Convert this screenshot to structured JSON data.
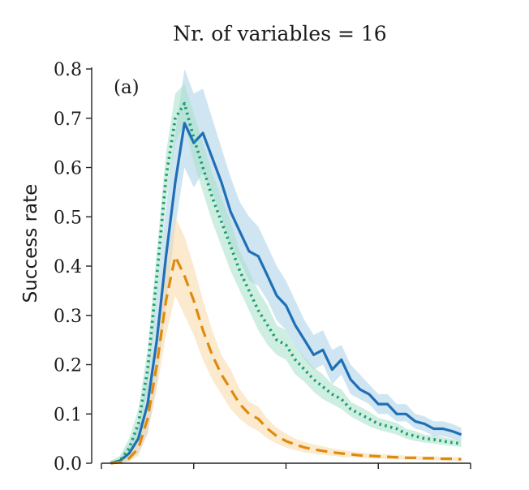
{
  "chart_data": {
    "type": "line",
    "title": "Nr. of variables = 16",
    "xlabel": "",
    "ylabel": "Success rate",
    "annotation": "(a)",
    "ylim": [
      0,
      0.8
    ],
    "xlim": [
      0,
      40
    ],
    "yticks": [
      0.0,
      0.1,
      0.2,
      0.3,
      0.4,
      0.5,
      0.6,
      0.7,
      0.8
    ],
    "ytick_labels": [
      "0.0",
      "0.1",
      "0.2",
      "0.3",
      "0.4",
      "0.5",
      "0.6",
      "0.7",
      "0.8"
    ],
    "xticks": [
      0,
      10,
      20,
      30,
      40
    ],
    "grid": false,
    "legend": "none",
    "x": [
      1,
      2,
      3,
      4,
      5,
      6,
      7,
      8,
      9,
      10,
      11,
      12,
      13,
      14,
      15,
      16,
      17,
      18,
      19,
      20,
      21,
      22,
      23,
      24,
      25,
      26,
      27,
      28,
      29,
      30,
      31,
      32,
      33,
      34,
      35,
      36,
      37,
      38,
      39
    ],
    "series": [
      {
        "color": "#1f6fb5",
        "band_color": "#a9cfe8",
        "style": "solid",
        "values": [
          0.0,
          0.005,
          0.02,
          0.05,
          0.12,
          0.25,
          0.42,
          0.57,
          0.69,
          0.65,
          0.67,
          0.62,
          0.57,
          0.51,
          0.47,
          0.43,
          0.42,
          0.38,
          0.34,
          0.32,
          0.28,
          0.25,
          0.22,
          0.23,
          0.19,
          0.21,
          0.17,
          0.15,
          0.14,
          0.12,
          0.12,
          0.1,
          0.1,
          0.085,
          0.08,
          0.07,
          0.07,
          0.065,
          0.058
        ],
        "lower": [
          0.0,
          0.0,
          0.005,
          0.02,
          0.06,
          0.16,
          0.32,
          0.48,
          0.6,
          0.56,
          0.59,
          0.55,
          0.5,
          0.44,
          0.41,
          0.37,
          0.36,
          0.33,
          0.29,
          0.27,
          0.24,
          0.21,
          0.19,
          0.2,
          0.16,
          0.18,
          0.14,
          0.13,
          0.12,
          0.1,
          0.1,
          0.085,
          0.085,
          0.07,
          0.065,
          0.055,
          0.055,
          0.05,
          0.045
        ],
        "upper": [
          0.005,
          0.01,
          0.04,
          0.08,
          0.18,
          0.34,
          0.52,
          0.67,
          0.8,
          0.75,
          0.76,
          0.7,
          0.64,
          0.58,
          0.53,
          0.5,
          0.48,
          0.44,
          0.4,
          0.37,
          0.33,
          0.29,
          0.26,
          0.27,
          0.23,
          0.24,
          0.2,
          0.18,
          0.16,
          0.14,
          0.14,
          0.12,
          0.12,
          0.1,
          0.095,
          0.085,
          0.085,
          0.08,
          0.072
        ]
      },
      {
        "color": "#1a9e6e",
        "band_color": "#a6e0c8",
        "style": "dotted",
        "values": [
          0.0,
          0.005,
          0.03,
          0.08,
          0.19,
          0.38,
          0.58,
          0.7,
          0.73,
          0.66,
          0.6,
          0.54,
          0.49,
          0.44,
          0.39,
          0.35,
          0.31,
          0.28,
          0.25,
          0.24,
          0.21,
          0.19,
          0.17,
          0.155,
          0.14,
          0.13,
          0.11,
          0.1,
          0.09,
          0.08,
          0.075,
          0.07,
          0.06,
          0.055,
          0.05,
          0.048,
          0.045,
          0.042,
          0.04
        ],
        "lower": [
          0.0,
          0.0,
          0.015,
          0.055,
          0.15,
          0.33,
          0.53,
          0.65,
          0.69,
          0.61,
          0.55,
          0.49,
          0.44,
          0.39,
          0.35,
          0.31,
          0.27,
          0.24,
          0.22,
          0.21,
          0.18,
          0.165,
          0.145,
          0.13,
          0.12,
          0.11,
          0.095,
          0.085,
          0.075,
          0.068,
          0.063,
          0.058,
          0.05,
          0.045,
          0.042,
          0.04,
          0.037,
          0.035,
          0.033
        ],
        "upper": [
          0.005,
          0.015,
          0.05,
          0.11,
          0.23,
          0.43,
          0.63,
          0.75,
          0.77,
          0.71,
          0.65,
          0.59,
          0.54,
          0.49,
          0.43,
          0.39,
          0.35,
          0.32,
          0.28,
          0.27,
          0.24,
          0.215,
          0.195,
          0.18,
          0.16,
          0.15,
          0.125,
          0.115,
          0.105,
          0.092,
          0.087,
          0.082,
          0.07,
          0.065,
          0.058,
          0.056,
          0.053,
          0.049,
          0.047
        ]
      },
      {
        "color": "#e08a0b",
        "band_color": "#f7d9a6",
        "style": "dashed",
        "values": [
          0.0,
          0.002,
          0.01,
          0.03,
          0.09,
          0.2,
          0.33,
          0.42,
          0.38,
          0.33,
          0.27,
          0.22,
          0.18,
          0.15,
          0.12,
          0.1,
          0.09,
          0.07,
          0.055,
          0.045,
          0.038,
          0.032,
          0.028,
          0.025,
          0.022,
          0.02,
          0.018,
          0.016,
          0.015,
          0.014,
          0.013,
          0.012,
          0.011,
          0.011,
          0.01,
          0.01,
          0.009,
          0.009,
          0.008
        ],
        "lower": [
          0.0,
          0.0,
          0.003,
          0.015,
          0.06,
          0.15,
          0.26,
          0.34,
          0.3,
          0.26,
          0.21,
          0.17,
          0.14,
          0.11,
          0.09,
          0.075,
          0.065,
          0.05,
          0.04,
          0.032,
          0.027,
          0.022,
          0.019,
          0.017,
          0.015,
          0.013,
          0.012,
          0.011,
          0.01,
          0.009,
          0.008,
          0.008,
          0.007,
          0.007,
          0.006,
          0.006,
          0.005,
          0.005,
          0.005
        ],
        "upper": [
          0.002,
          0.006,
          0.02,
          0.05,
          0.13,
          0.26,
          0.4,
          0.5,
          0.46,
          0.4,
          0.33,
          0.27,
          0.22,
          0.19,
          0.15,
          0.125,
          0.115,
          0.09,
          0.072,
          0.06,
          0.05,
          0.043,
          0.038,
          0.034,
          0.03,
          0.027,
          0.024,
          0.022,
          0.02,
          0.019,
          0.018,
          0.017,
          0.015,
          0.015,
          0.014,
          0.014,
          0.013,
          0.013,
          0.012
        ]
      }
    ]
  }
}
